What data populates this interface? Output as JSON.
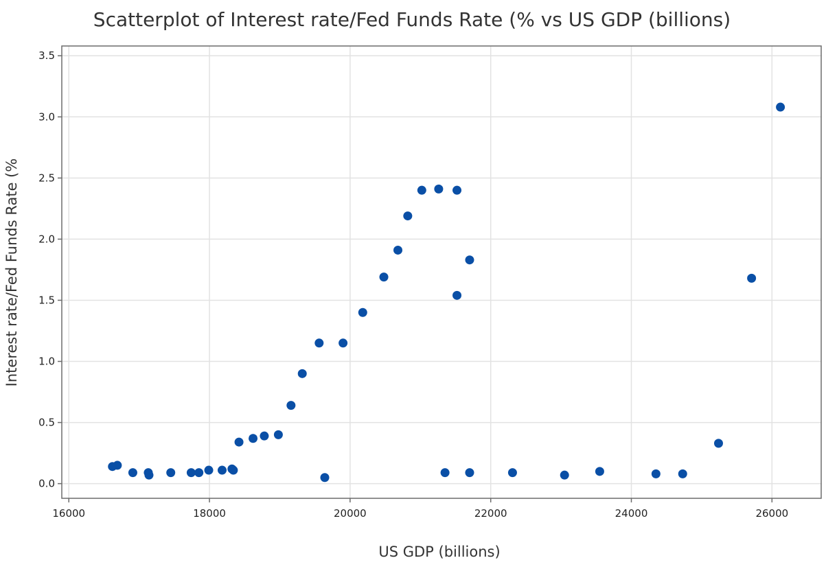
{
  "chart_data": {
    "type": "scatter",
    "title": "Scatterplot of Interest rate/Fed Funds Rate (% vs US GDP (billions)",
    "xlabel": "US GDP (billions)",
    "ylabel": "Interest rate/Fed Funds Rate (%",
    "xlim": [
      15900,
      26700
    ],
    "ylim": [
      -0.12,
      3.58
    ],
    "xticks": [
      16000,
      18000,
      20000,
      22000,
      24000,
      26000
    ],
    "yticks": [
      0.0,
      0.5,
      1.0,
      1.5,
      2.0,
      2.5,
      3.0,
      3.5
    ],
    "xtick_labels": [
      "16000",
      "18000",
      "20000",
      "22000",
      "24000",
      "26000"
    ],
    "ytick_labels": [
      "0.0",
      "0.5",
      "1.0",
      "1.5",
      "2.0",
      "2.5",
      "3.0",
      "3.5"
    ],
    "grid": true,
    "marker_color": "#0a4fa6",
    "points": [
      {
        "x": 16620,
        "y": 0.14
      },
      {
        "x": 16690,
        "y": 0.15
      },
      {
        "x": 16910,
        "y": 0.09
      },
      {
        "x": 17130,
        "y": 0.09
      },
      {
        "x": 17140,
        "y": 0.07
      },
      {
        "x": 17450,
        "y": 0.09
      },
      {
        "x": 17740,
        "y": 0.09
      },
      {
        "x": 17850,
        "y": 0.09
      },
      {
        "x": 17990,
        "y": 0.11
      },
      {
        "x": 18180,
        "y": 0.11
      },
      {
        "x": 18320,
        "y": 0.12
      },
      {
        "x": 18340,
        "y": 0.11
      },
      {
        "x": 18420,
        "y": 0.34
      },
      {
        "x": 18620,
        "y": 0.37
      },
      {
        "x": 18780,
        "y": 0.39
      },
      {
        "x": 18980,
        "y": 0.4
      },
      {
        "x": 19160,
        "y": 0.64
      },
      {
        "x": 19320,
        "y": 0.9
      },
      {
        "x": 19560,
        "y": 1.15
      },
      {
        "x": 19640,
        "y": 0.05
      },
      {
        "x": 19900,
        "y": 1.15
      },
      {
        "x": 20180,
        "y": 1.4
      },
      {
        "x": 20480,
        "y": 1.69
      },
      {
        "x": 20680,
        "y": 1.91
      },
      {
        "x": 20820,
        "y": 2.19
      },
      {
        "x": 21020,
        "y": 2.4
      },
      {
        "x": 21260,
        "y": 2.41
      },
      {
        "x": 21350,
        "y": 0.09
      },
      {
        "x": 21520,
        "y": 2.4
      },
      {
        "x": 21520,
        "y": 1.54
      },
      {
        "x": 21700,
        "y": 1.83
      },
      {
        "x": 21700,
        "y": 0.09
      },
      {
        "x": 22310,
        "y": 0.09
      },
      {
        "x": 23050,
        "y": 0.07
      },
      {
        "x": 23550,
        "y": 0.1
      },
      {
        "x": 24350,
        "y": 0.08
      },
      {
        "x": 24730,
        "y": 0.08
      },
      {
        "x": 25240,
        "y": 0.33
      },
      {
        "x": 25710,
        "y": 1.68
      },
      {
        "x": 26120,
        "y": 3.08
      }
    ]
  }
}
